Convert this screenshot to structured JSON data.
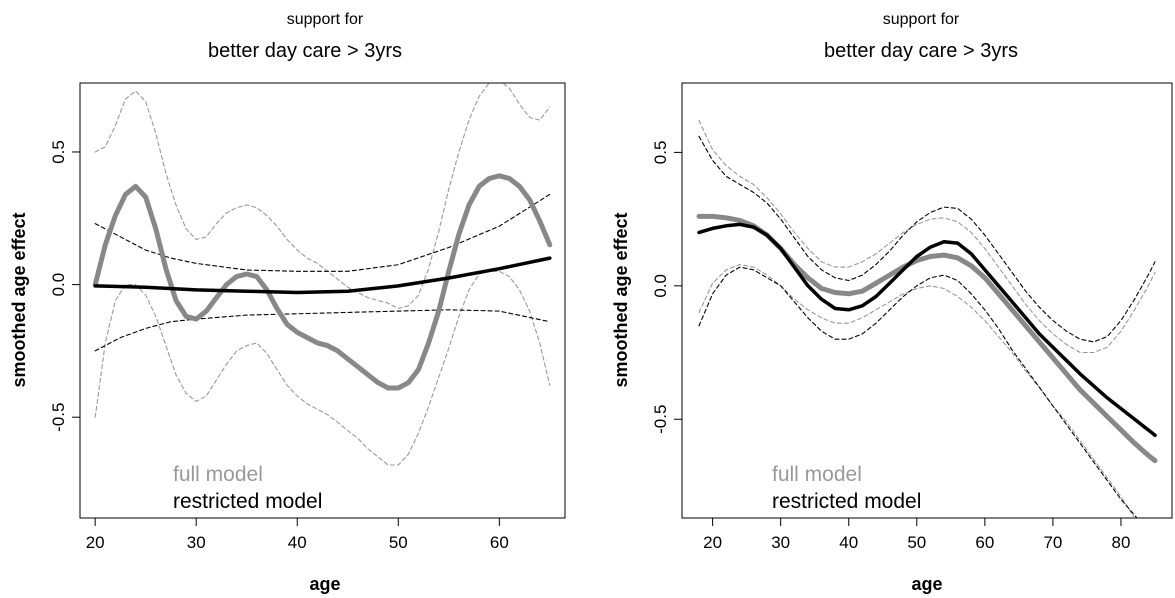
{
  "chart_data": [
    {
      "type": "line",
      "supertitle": "support for",
      "title": "better day care > 3yrs",
      "xlabel": "age",
      "ylabel": "smoothed age effect",
      "xlim": [
        18.5,
        66.5
      ],
      "ylim": [
        -0.88,
        0.76
      ],
      "xticks": [
        "20",
        "30",
        "40",
        "50",
        "60"
      ],
      "xtick_values": [
        20,
        30,
        40,
        50,
        60
      ],
      "yticks": [
        "-0.5",
        "0.0",
        "0.5"
      ],
      "ytick_values": [
        -0.5,
        0.0,
        0.5
      ],
      "legend": {
        "placement": "bottom-left",
        "entries": [
          {
            "label": "full model",
            "color": "#999999"
          },
          {
            "label": "restricted model",
            "color": "#000000"
          }
        ]
      },
      "series": [
        {
          "role": "full",
          "style": "solid",
          "color": "#888888",
          "x": [
            20,
            21,
            22,
            23,
            24,
            25,
            26,
            27,
            28,
            29,
            30,
            31,
            32,
            33,
            34,
            35,
            36,
            37,
            38,
            39,
            40,
            41,
            42,
            43,
            44,
            45,
            46,
            47,
            48,
            49,
            50,
            51,
            52,
            53,
            54,
            55,
            56,
            57,
            58,
            59,
            60,
            61,
            62,
            63,
            64,
            65
          ],
          "y": [
            0.0,
            0.15,
            0.26,
            0.34,
            0.37,
            0.33,
            0.21,
            0.06,
            -0.06,
            -0.12,
            -0.13,
            -0.1,
            -0.05,
            0.0,
            0.03,
            0.04,
            0.03,
            -0.02,
            -0.09,
            -0.15,
            -0.18,
            -0.2,
            -0.22,
            -0.23,
            -0.25,
            -0.28,
            -0.31,
            -0.34,
            -0.37,
            -0.39,
            -0.39,
            -0.37,
            -0.32,
            -0.22,
            -0.1,
            0.05,
            0.19,
            0.3,
            0.37,
            0.4,
            0.41,
            0.4,
            0.37,
            0.32,
            0.24,
            0.15
          ]
        },
        {
          "role": "full-upper-band",
          "style": "dashed",
          "color": "#999999",
          "x": [
            20,
            21,
            22,
            23,
            24,
            25,
            26,
            27,
            28,
            29,
            30,
            31,
            32,
            33,
            34,
            35,
            36,
            37,
            38,
            39,
            40,
            41,
            42,
            43,
            44,
            45,
            46,
            47,
            48,
            49,
            50,
            51,
            52,
            53,
            54,
            55,
            56,
            57,
            58,
            59,
            60,
            61,
            62,
            63,
            64,
            65
          ],
          "y": [
            0.5,
            0.52,
            0.6,
            0.7,
            0.73,
            0.69,
            0.57,
            0.42,
            0.3,
            0.21,
            0.17,
            0.18,
            0.23,
            0.27,
            0.29,
            0.3,
            0.29,
            0.26,
            0.22,
            0.17,
            0.13,
            0.1,
            0.08,
            0.05,
            0.02,
            -0.01,
            -0.03,
            -0.05,
            -0.06,
            -0.07,
            -0.09,
            -0.08,
            -0.04,
            0.06,
            0.2,
            0.36,
            0.5,
            0.62,
            0.71,
            0.76,
            0.77,
            0.74,
            0.68,
            0.63,
            0.62,
            0.67
          ]
        },
        {
          "role": "full-lower-band",
          "style": "dashed",
          "color": "#999999",
          "x": [
            20,
            21,
            22,
            23,
            24,
            25,
            26,
            27,
            28,
            29,
            30,
            31,
            32,
            33,
            34,
            35,
            36,
            37,
            38,
            39,
            40,
            41,
            42,
            43,
            44,
            45,
            46,
            47,
            48,
            49,
            50,
            51,
            52,
            53,
            54,
            55,
            56,
            57,
            58,
            59,
            60,
            61,
            62,
            63,
            64,
            65
          ],
          "y": [
            -0.5,
            -0.22,
            -0.06,
            0.0,
            0.0,
            -0.04,
            -0.12,
            -0.23,
            -0.34,
            -0.41,
            -0.44,
            -0.42,
            -0.36,
            -0.3,
            -0.25,
            -0.23,
            -0.22,
            -0.26,
            -0.32,
            -0.38,
            -0.42,
            -0.45,
            -0.47,
            -0.49,
            -0.52,
            -0.55,
            -0.58,
            -0.62,
            -0.65,
            -0.68,
            -0.68,
            -0.64,
            -0.56,
            -0.46,
            -0.35,
            -0.24,
            -0.12,
            -0.02,
            0.04,
            0.05,
            0.05,
            0.03,
            -0.02,
            -0.1,
            -0.22,
            -0.38
          ]
        },
        {
          "role": "restricted",
          "style": "solid",
          "color": "#000000",
          "x": [
            20,
            25,
            30,
            35,
            40,
            45,
            50,
            55,
            60,
            65
          ],
          "y": [
            -0.005,
            -0.01,
            -0.02,
            -0.025,
            -0.03,
            -0.025,
            -0.005,
            0.025,
            0.06,
            0.1
          ]
        },
        {
          "role": "restricted-upper-band",
          "style": "dashed",
          "color": "#000000",
          "x": [
            20,
            22.5,
            25,
            27.5,
            30,
            35,
            40,
            45,
            50,
            55,
            60,
            62.5,
            65
          ],
          "y": [
            0.23,
            0.18,
            0.13,
            0.1,
            0.08,
            0.055,
            0.05,
            0.05,
            0.075,
            0.14,
            0.22,
            0.28,
            0.34
          ]
        },
        {
          "role": "restricted-lower-band",
          "style": "dashed",
          "color": "#000000",
          "x": [
            20,
            22.5,
            25,
            27.5,
            30,
            35,
            40,
            45,
            50,
            55,
            60,
            62.5,
            65
          ],
          "y": [
            -0.25,
            -0.2,
            -0.165,
            -0.14,
            -0.13,
            -0.115,
            -0.11,
            -0.105,
            -0.1,
            -0.095,
            -0.1,
            -0.12,
            -0.14
          ]
        }
      ]
    },
    {
      "type": "line",
      "supertitle": "support for",
      "title": "better day care > 3yrs",
      "xlabel": "age",
      "ylabel": "smoothed age effect",
      "xlim": [
        15.5,
        87.5
      ],
      "ylim": [
        -0.87,
        0.76
      ],
      "xticks": [
        "20",
        "30",
        "40",
        "50",
        "60",
        "70",
        "80"
      ],
      "xtick_values": [
        20,
        30,
        40,
        50,
        60,
        70,
        80
      ],
      "yticks": [
        "-0.5",
        "0.0",
        "0.5"
      ],
      "ytick_values": [
        -0.5,
        0.0,
        0.5
      ],
      "legend": {
        "placement": "bottom-left",
        "entries": [
          {
            "label": "full model",
            "color": "#999999"
          },
          {
            "label": "restricted model",
            "color": "#000000"
          }
        ]
      },
      "series": [
        {
          "role": "full",
          "style": "solid",
          "color": "#888888",
          "x": [
            18,
            20,
            22,
            24,
            26,
            28,
            30,
            32,
            34,
            36,
            38,
            40,
            42,
            44,
            46,
            48,
            50,
            52,
            54,
            56,
            58,
            60,
            62,
            64,
            66,
            68,
            70,
            72,
            74,
            76,
            78,
            80,
            82,
            84,
            85
          ],
          "y": [
            0.26,
            0.26,
            0.255,
            0.245,
            0.225,
            0.19,
            0.14,
            0.08,
            0.03,
            -0.01,
            -0.025,
            -0.03,
            -0.02,
            0.01,
            0.04,
            0.07,
            0.095,
            0.11,
            0.115,
            0.105,
            0.075,
            0.03,
            -0.03,
            -0.09,
            -0.15,
            -0.21,
            -0.27,
            -0.33,
            -0.39,
            -0.44,
            -0.49,
            -0.54,
            -0.59,
            -0.635,
            -0.655
          ]
        },
        {
          "role": "full-upper-band",
          "style": "dashed",
          "color": "#999999",
          "x": [
            18,
            20,
            22,
            24,
            26,
            28,
            30,
            32,
            34,
            36,
            38,
            40,
            42,
            44,
            46,
            48,
            50,
            52,
            54,
            56,
            58,
            60,
            62,
            64,
            66,
            68,
            70,
            72,
            74,
            76,
            78,
            80,
            82,
            84,
            85
          ],
          "y": [
            0.62,
            0.51,
            0.45,
            0.41,
            0.38,
            0.33,
            0.27,
            0.2,
            0.14,
            0.09,
            0.07,
            0.07,
            0.09,
            0.12,
            0.16,
            0.2,
            0.23,
            0.25,
            0.255,
            0.24,
            0.2,
            0.14,
            0.07,
            0.0,
            -0.07,
            -0.13,
            -0.18,
            -0.22,
            -0.25,
            -0.25,
            -0.23,
            -0.17,
            -0.09,
            0.0,
            0.05
          ]
        },
        {
          "role": "full-lower-band",
          "style": "dashed",
          "color": "#999999",
          "x": [
            18,
            20,
            22,
            24,
            26,
            28,
            30,
            32,
            34,
            36,
            38,
            40,
            42,
            44,
            46,
            48,
            50,
            52,
            54,
            56,
            58,
            60,
            62,
            64,
            66,
            68,
            70,
            72,
            74,
            76,
            78,
            80,
            82
          ],
          "y": [
            -0.1,
            0.01,
            0.06,
            0.08,
            0.07,
            0.04,
            0.0,
            -0.05,
            -0.09,
            -0.12,
            -0.14,
            -0.14,
            -0.12,
            -0.09,
            -0.06,
            -0.03,
            -0.01,
            0.0,
            -0.01,
            -0.04,
            -0.08,
            -0.13,
            -0.19,
            -0.25,
            -0.32,
            -0.38,
            -0.45,
            -0.51,
            -0.58,
            -0.65,
            -0.72,
            -0.79,
            -0.87
          ]
        },
        {
          "role": "restricted",
          "style": "solid",
          "color": "#000000",
          "x": [
            18,
            20,
            22,
            24,
            26,
            28,
            30,
            32,
            34,
            36,
            38,
            40,
            42,
            44,
            46,
            48,
            50,
            52,
            54,
            56,
            58,
            60,
            62,
            64,
            66,
            68,
            70,
            72,
            74,
            76,
            78,
            80,
            82,
            84,
            85
          ],
          "y": [
            0.2,
            0.215,
            0.225,
            0.23,
            0.22,
            0.19,
            0.14,
            0.07,
            0.0,
            -0.05,
            -0.085,
            -0.09,
            -0.075,
            -0.04,
            0.01,
            0.06,
            0.11,
            0.145,
            0.165,
            0.16,
            0.12,
            0.06,
            0.0,
            -0.06,
            -0.12,
            -0.18,
            -0.23,
            -0.28,
            -0.33,
            -0.375,
            -0.42,
            -0.46,
            -0.5,
            -0.54,
            -0.56
          ]
        },
        {
          "role": "restricted-upper-band",
          "style": "dashed",
          "color": "#000000",
          "x": [
            18,
            20,
            22,
            24,
            26,
            28,
            30,
            32,
            34,
            36,
            38,
            40,
            42,
            44,
            46,
            48,
            50,
            52,
            54,
            56,
            58,
            60,
            62,
            64,
            66,
            68,
            70,
            72,
            74,
            76,
            78,
            80,
            82,
            84,
            85
          ],
          "y": [
            0.56,
            0.47,
            0.41,
            0.38,
            0.35,
            0.31,
            0.25,
            0.18,
            0.11,
            0.06,
            0.03,
            0.02,
            0.04,
            0.08,
            0.13,
            0.19,
            0.24,
            0.275,
            0.295,
            0.29,
            0.25,
            0.19,
            0.12,
            0.05,
            -0.02,
            -0.08,
            -0.13,
            -0.17,
            -0.2,
            -0.21,
            -0.19,
            -0.13,
            -0.05,
            0.04,
            0.09
          ]
        },
        {
          "role": "restricted-lower-band",
          "style": "dashed",
          "color": "#000000",
          "x": [
            18,
            20,
            22,
            24,
            26,
            28,
            30,
            32,
            34,
            36,
            38,
            40,
            42,
            44,
            46,
            48,
            50,
            52,
            54,
            56,
            58,
            60,
            62,
            64,
            66,
            68,
            70,
            72,
            74,
            76,
            78,
            80,
            82,
            83
          ],
          "y": [
            -0.15,
            -0.03,
            0.04,
            0.07,
            0.06,
            0.03,
            0.0,
            -0.06,
            -0.12,
            -0.17,
            -0.2,
            -0.2,
            -0.18,
            -0.14,
            -0.09,
            -0.04,
            0.0,
            0.03,
            0.04,
            0.02,
            -0.03,
            -0.09,
            -0.16,
            -0.24,
            -0.31,
            -0.38,
            -0.45,
            -0.52,
            -0.59,
            -0.66,
            -0.73,
            -0.8,
            -0.86,
            -0.89
          ]
        }
      ]
    }
  ]
}
